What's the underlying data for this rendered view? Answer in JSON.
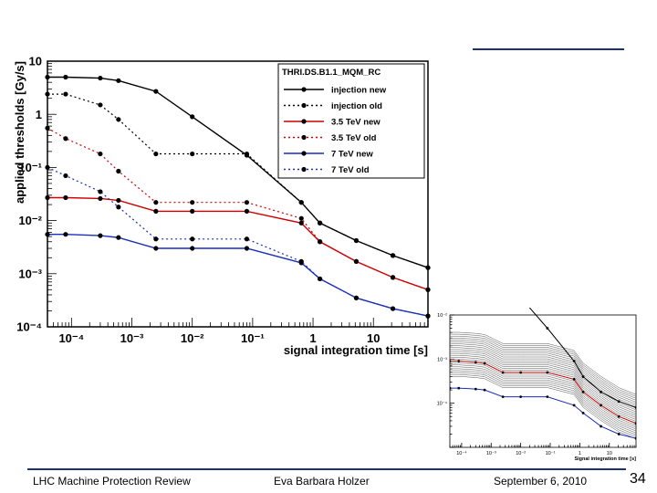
{
  "footer": {
    "left": "LHC Machine Protection Review",
    "center": "Eva Barbara Holzer",
    "date": "September 6, 2010",
    "page": "34"
  },
  "chart_data": [
    {
      "type": "line",
      "xscale": "log",
      "yscale": "log",
      "xlim": [
        4e-05,
        80
      ],
      "ylim": [
        0.0001,
        10
      ],
      "xlabel": "signal integration time [s]",
      "ylabel": "applied thresholds [Gy/s]",
      "x_ticks": [
        "10⁻⁴",
        "10⁻³",
        "10⁻²",
        "10⁻¹",
        "1",
        "10"
      ],
      "y_ticks": [
        "10",
        "1",
        "10⁻¹",
        "10⁻²",
        "10⁻³",
        "10⁻⁴"
      ],
      "grid": true,
      "legend_title": "THRI.DS.B1.1_MQM_RC",
      "legend_position": "top-right",
      "x": [
        4e-05,
        8e-05,
        0.0003,
        0.0006,
        0.0025,
        0.01,
        0.08,
        0.64,
        1.3,
        5.2,
        21,
        80
      ],
      "series": [
        {
          "name": "injection new",
          "color": "#000000",
          "dash": "solid",
          "values": [
            5,
            5,
            4.8,
            4.3,
            2.7,
            0.9,
            0.17,
            0.022,
            0.009,
            0.0042,
            0.0022,
            0.0013
          ]
        },
        {
          "name": "injection old",
          "color": "#000000",
          "dash": "dotted",
          "values": [
            2.4,
            2.4,
            1.5,
            0.8,
            0.18,
            0.18,
            0.18,
            0.022,
            0.009,
            0.0042,
            0.0022,
            0.0013
          ]
        },
        {
          "name": "3.5 TeV new",
          "color": "#cc0000",
          "dash": "solid",
          "values": [
            0.027,
            0.027,
            0.026,
            0.024,
            0.015,
            0.015,
            0.015,
            0.009,
            0.004,
            0.0017,
            0.00085,
            0.0005
          ]
        },
        {
          "name": "3.5 TeV old",
          "color": "#cc0000",
          "dash": "dotted",
          "values": [
            0.55,
            0.35,
            0.18,
            0.085,
            0.022,
            0.022,
            0.022,
            0.011,
            0.004,
            0.0017,
            0.00085,
            0.0005
          ]
        },
        {
          "name": "7 TeV new",
          "color": "#1a2fb8",
          "dash": "solid",
          "values": [
            0.0055,
            0.0055,
            0.0052,
            0.0048,
            0.003,
            0.003,
            0.003,
            0.0016,
            0.0008,
            0.00035,
            0.00022,
            0.00016
          ]
        },
        {
          "name": "7 TeV old",
          "color": "#1a2fb8",
          "dash": "dotted",
          "values": [
            0.1,
            0.07,
            0.035,
            0.018,
            0.0045,
            0.0045,
            0.0045,
            0.0017,
            0.0008,
            0.00035,
            0.00022,
            0.00016
          ]
        }
      ]
    },
    {
      "type": "line",
      "xscale": "log",
      "yscale": "log",
      "xlim": [
        4e-05,
        80
      ],
      "ylim": [
        0.0001,
        0.1
      ],
      "xlabel": "Signal integration time [s]",
      "x_ticks": [
        "10⁻⁴",
        "10⁻³",
        "10⁻²",
        "10⁻¹",
        "1",
        "10"
      ],
      "y_ticks": [
        "10⁻²",
        "10⁻³",
        "10⁻⁴"
      ],
      "x": [
        4e-05,
        8e-05,
        0.0003,
        0.0006,
        0.0025,
        0.01,
        0.08,
        0.64,
        1.3,
        5.2,
        21,
        80
      ],
      "highlight_series": [
        {
          "color": "#000000",
          "values": [
            1.5,
            1.5,
            1.4,
            1.2,
            0.75,
            0.25,
            0.05,
            0.009,
            0.004,
            0.0018,
            0.0011,
            0.0008
          ]
        },
        {
          "color": "#cc0000",
          "values": [
            0.009,
            0.009,
            0.0085,
            0.008,
            0.005,
            0.005,
            0.005,
            0.0035,
            0.0018,
            0.0009,
            0.0005,
            0.00035
          ]
        },
        {
          "color": "#1a2fb8",
          "values": [
            0.0022,
            0.0022,
            0.0021,
            0.002,
            0.0014,
            0.0014,
            0.0014,
            0.0009,
            0.0006,
            0.0003,
            0.0002,
            0.00016
          ]
        }
      ],
      "band": {
        "color": "#555555",
        "count": 24,
        "low_factor": 0.45,
        "high_factor": 4.5
      }
    }
  ]
}
